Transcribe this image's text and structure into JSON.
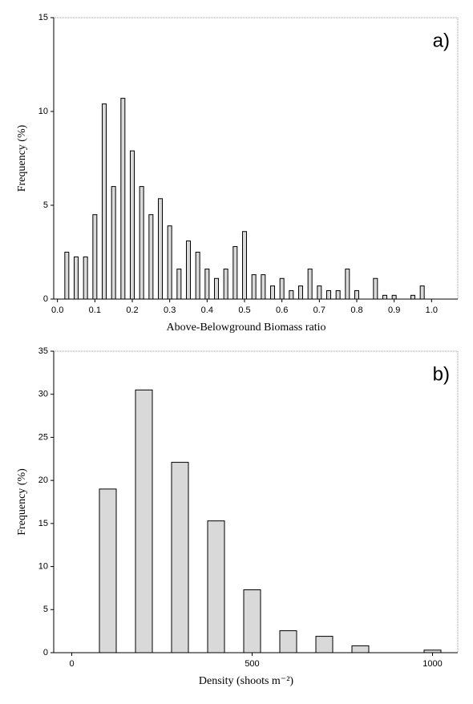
{
  "chart_data": [
    {
      "type": "bar",
      "title": "a)",
      "x_label": "Above-Belowground Biomass ratio",
      "y_label": "Frequency (%)",
      "x": [
        0.025,
        0.05,
        0.075,
        0.1,
        0.125,
        0.15,
        0.175,
        0.2,
        0.225,
        0.25,
        0.275,
        0.3,
        0.325,
        0.35,
        0.375,
        0.4,
        0.425,
        0.45,
        0.475,
        0.5,
        0.525,
        0.55,
        0.575,
        0.6,
        0.625,
        0.65,
        0.675,
        0.7,
        0.725,
        0.75,
        0.775,
        0.8,
        0.85,
        0.875,
        0.9,
        0.95,
        0.975
      ],
      "values": [
        2.5,
        2.25,
        2.25,
        4.5,
        10.4,
        6.0,
        10.7,
        7.9,
        6.0,
        4.5,
        5.35,
        3.9,
        1.6,
        3.1,
        2.5,
        1.6,
        1.1,
        1.6,
        2.8,
        3.6,
        1.3,
        1.3,
        0.7,
        1.1,
        0.45,
        0.7,
        1.6,
        0.7,
        0.45,
        0.45,
        1.6,
        0.45,
        1.1,
        0.2,
        0.2,
        0.2,
        0.7
      ],
      "color": "#d9d9d9",
      "xlim": [
        -0.01,
        1.07
      ],
      "xticks": [
        {
          "value": 0,
          "label": "0.0"
        },
        0.1,
        0.2,
        0.3,
        0.4,
        0.5,
        0.6,
        0.7,
        0.8,
        0.9,
        {
          "value": 1,
          "label": "1.0"
        }
      ],
      "ylim": [
        0,
        15
      ],
      "yticks": [
        0,
        5,
        10,
        15
      ]
    },
    {
      "type": "bar",
      "title": "b)",
      "x_label": "Density (shoots m⁻²)",
      "y_label": "Frequency (%)",
      "x": [
        100,
        200,
        300,
        400,
        500,
        600,
        700,
        800,
        1000
      ],
      "values": [
        19.0,
        30.5,
        22.1,
        15.3,
        7.3,
        2.55,
        1.9,
        0.8,
        0.3
      ],
      "color": "#d9d9d9",
      "xlim": [
        -50,
        1070
      ],
      "xticks": [
        0,
        500,
        1000
      ],
      "ylim": [
        0,
        35
      ],
      "yticks": [
        0,
        5,
        10,
        15,
        20,
        25,
        30,
        35
      ]
    }
  ]
}
